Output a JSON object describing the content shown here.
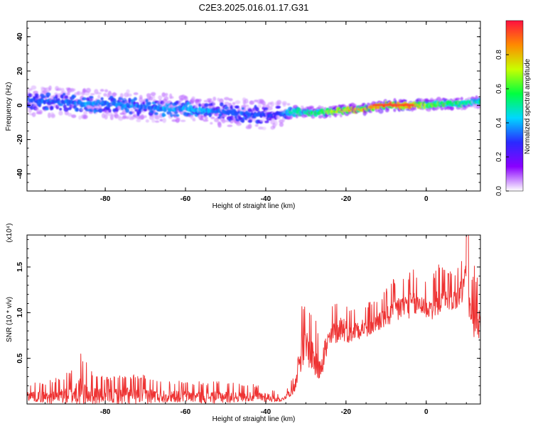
{
  "title": "C2E3.2025.016.01.17.G31",
  "chart_data": [
    {
      "type": "heatmap",
      "xlabel": "Height of straight line (km)",
      "ylabel": "Frequency (Hz)",
      "xlim": [
        -99.5,
        13.5
      ],
      "ylim": [
        -50,
        49
      ],
      "xticks": [
        -80,
        -60,
        -40,
        -20,
        0
      ],
      "yticks": [
        -40,
        -20,
        0,
        20,
        40
      ],
      "tick_labels_x": [
        "-80",
        "-60",
        "-40",
        "-20",
        "0"
      ],
      "tick_labels_y": [
        "-40",
        "-20",
        "0",
        "20",
        "40"
      ],
      "colorbar": {
        "label": "Normalized spectral amplitude",
        "range": [
          0,
          1
        ],
        "ticks": [
          0.0,
          0.2,
          0.4,
          0.6,
          0.8
        ],
        "tick_labels": [
          "0.0",
          "0.2",
          "0.4",
          "0.6",
          "0.8"
        ],
        "colors": [
          "#ffffff",
          "#8a00ff",
          "#2a2aff",
          "#00d7ff",
          "#00ff40",
          "#c8ff00",
          "#ff8a00",
          "#ff1040"
        ]
      },
      "ridge": {
        "x": [
          -99,
          -95,
          -90,
          -85,
          -80,
          -75,
          -70,
          -65,
          -60,
          -55,
          -50,
          -45,
          -40,
          -37,
          -34,
          -30,
          -25,
          -20,
          -15,
          -10,
          -5,
          0,
          5,
          10,
          13
        ],
        "freq": [
          3,
          2,
          2,
          1,
          1,
          0,
          -1,
          -2,
          -2,
          -3,
          -4,
          -5,
          -6,
          -5,
          -4,
          -4,
          -4,
          -3,
          -2,
          0,
          0,
          0,
          1,
          1,
          2
        ],
        "amplitude": [
          0.35,
          0.35,
          0.35,
          0.4,
          0.35,
          0.38,
          0.35,
          0.4,
          0.4,
          0.4,
          0.35,
          0.35,
          0.3,
          0.3,
          0.5,
          0.55,
          0.65,
          0.8,
          0.85,
          0.95,
          0.95,
          0.7,
          0.6,
          0.55,
          0.5
        ],
        "spread_hz": [
          6,
          6,
          6,
          6,
          6,
          6,
          6,
          6,
          5,
          5,
          6,
          6,
          6,
          6,
          3,
          2,
          2,
          2,
          2,
          2,
          2,
          2,
          2,
          2,
          2
        ]
      }
    },
    {
      "type": "line",
      "xlabel": "Height of straight line (km)",
      "ylabel": "SNR (10 * v/v)",
      "scale_label": "(x10⁴)",
      "xlim": [
        -99.5,
        13.5
      ],
      "ylim": [
        0,
        1.85
      ],
      "xticks": [
        -80,
        -60,
        -40,
        -20,
        0
      ],
      "yticks": [
        0.5,
        1.0,
        1.5
      ],
      "tick_labels_x": [
        "-80",
        "-60",
        "-40",
        "-20",
        "0"
      ],
      "tick_labels_y": [
        "0.5",
        "1.0",
        "1.5"
      ],
      "color": "#ee3333",
      "envelope": {
        "x": [
          -99.5,
          -95,
          -90,
          -86,
          -84,
          -80,
          -75,
          -70,
          -65,
          -60,
          -55,
          -50,
          -45,
          -40,
          -36,
          -33,
          -31,
          -29,
          -27,
          -25,
          -23,
          -21,
          -19,
          -17,
          -15,
          -13,
          -11,
          -9,
          -7,
          -5,
          -3,
          -1,
          1,
          3,
          5,
          7,
          9,
          10,
          11,
          12,
          13,
          13.5
        ],
        "base": [
          0.08,
          0.06,
          0.07,
          0.09,
          0.08,
          0.07,
          0.07,
          0.07,
          0.07,
          0.07,
          0.06,
          0.06,
          0.07,
          0.06,
          0.04,
          0.15,
          0.55,
          0.55,
          0.35,
          0.55,
          0.75,
          0.8,
          0.75,
          0.8,
          0.8,
          0.85,
          0.9,
          0.95,
          1.0,
          1.05,
          1.05,
          1.05,
          1.0,
          1.1,
          1.15,
          1.1,
          1.2,
          1.4,
          0.9,
          0.9,
          0.85,
          0.9
        ],
        "amp": [
          0.12,
          0.15,
          0.2,
          0.4,
          0.25,
          0.18,
          0.22,
          0.2,
          0.15,
          0.15,
          0.15,
          0.15,
          0.12,
          0.12,
          0.04,
          0.12,
          0.45,
          0.45,
          0.4,
          0.35,
          0.3,
          0.3,
          0.25,
          0.25,
          0.25,
          0.25,
          0.25,
          0.3,
          0.35,
          0.3,
          0.35,
          0.3,
          0.3,
          0.35,
          0.3,
          0.3,
          0.35,
          0.45,
          0.4,
          0.5,
          0.4,
          0.4
        ]
      }
    }
  ]
}
